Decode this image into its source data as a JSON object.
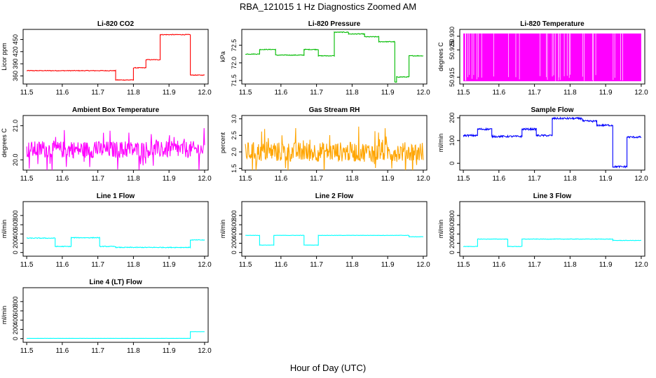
{
  "title": "RBA_121015  1 Hz Diagnostics Zoomed AM",
  "xlabel": "Hour of Day (UTC)",
  "chart_data": [
    {
      "type": "line",
      "title": "Li-820 CO2",
      "ylabel": "Licor ppm",
      "color": "#ff0000",
      "xlim": [
        11.49,
        12.01
      ],
      "ylim": [
        340,
        475
      ],
      "x_ticks": [
        "11.5",
        "11.6",
        "11.7",
        "11.8",
        "11.9",
        "12.0"
      ],
      "y_ticks": [
        {
          "v": 360,
          "label": "360"
        },
        {
          "v": 390,
          "label": "390"
        },
        {
          "v": 420,
          "label": "420"
        },
        {
          "v": 450,
          "label": "450"
        }
      ],
      "noise": 0.8,
      "steps": [
        [
          11.5,
          11.75,
          373
        ],
        [
          11.75,
          11.8,
          350
        ],
        [
          11.8,
          11.835,
          380
        ],
        [
          11.835,
          11.875,
          400
        ],
        [
          11.875,
          11.96,
          462
        ],
        [
          11.96,
          12.0,
          362
        ]
      ]
    },
    {
      "type": "line",
      "title": "Li-820 Pressure",
      "ylabel": "kPa",
      "color": "#00bb00",
      "xlim": [
        11.49,
        12.01
      ],
      "ylim": [
        71.4,
        72.95
      ],
      "x_ticks": [
        "11.5",
        "11.6",
        "11.7",
        "11.8",
        "11.9",
        "12.0"
      ],
      "y_ticks": [
        {
          "v": 71.5,
          "label": "71.5"
        },
        {
          "v": 72.0,
          "label": "72.0"
        },
        {
          "v": 72.5,
          "label": "72.5"
        }
      ],
      "noise": 0.01,
      "steps": [
        [
          11.5,
          11.54,
          72.25
        ],
        [
          11.54,
          11.585,
          72.38
        ],
        [
          11.585,
          11.665,
          72.22
        ],
        [
          11.665,
          11.705,
          72.38
        ],
        [
          11.705,
          11.75,
          72.2
        ],
        [
          11.75,
          11.79,
          72.87
        ],
        [
          11.79,
          11.835,
          72.82
        ],
        [
          11.835,
          11.875,
          72.74
        ],
        [
          11.875,
          11.92,
          72.6
        ],
        [
          11.92,
          11.925,
          71.45
        ],
        [
          11.925,
          11.96,
          71.6
        ],
        [
          11.96,
          12.0,
          72.2
        ]
      ]
    },
    {
      "type": "line",
      "title": "Li-820 Temperature",
      "ylabel": "degrees C",
      "color": "#ff00ff",
      "xlim": [
        11.49,
        12.01
      ],
      "ylim": [
        50.9125,
        50.9325
      ],
      "x_ticks": [
        "11.5",
        "11.6",
        "11.7",
        "11.8",
        "11.9",
        "12.0"
      ],
      "y_ticks": [
        {
          "v": 50.915,
          "label": "50.915"
        },
        {
          "v": 50.925,
          "label": "50.925"
        },
        {
          "v": 50.93,
          "label": "50.930"
        }
      ],
      "noise": 0,
      "steps": [
        [
          11.5,
          12.0,
          50.922
        ]
      ]
    },
    {
      "type": "line",
      "title": "Ambient Box Temperature",
      "ylabel": "degrees C",
      "color": "#ff00ff",
      "xlim": [
        11.49,
        12.01
      ],
      "ylim": [
        19.7,
        21.3
      ],
      "x_ticks": [
        "11.5",
        "11.6",
        "11.7",
        "11.8",
        "11.9",
        "12.0"
      ],
      "y_ticks": [
        {
          "v": 20.0,
          "label": "20.0"
        },
        {
          "v": 21.0,
          "label": "21.0"
        }
      ],
      "noise": 0.25,
      "steps": [
        [
          11.5,
          12.0,
          20.3
        ]
      ]
    },
    {
      "type": "line",
      "title": "Gas Stream RH",
      "ylabel": "percent",
      "color": "#ffa500",
      "xlim": [
        11.49,
        12.01
      ],
      "ylim": [
        1.45,
        3.1
      ],
      "x_ticks": [
        "11.5",
        "11.6",
        "11.7",
        "11.8",
        "11.9",
        "12.0"
      ],
      "y_ticks": [
        {
          "v": 1.5,
          "label": "1.5"
        },
        {
          "v": 2.0,
          "label": "2.0"
        },
        {
          "v": 2.5,
          "label": "2.5"
        },
        {
          "v": 3.0,
          "label": "3.0"
        }
      ],
      "noise": 0.3,
      "steps": [
        [
          11.5,
          12.0,
          2.0
        ]
      ]
    },
    {
      "type": "line",
      "title": "Sample Flow",
      "ylabel": "ml/min",
      "color": "#0000ff",
      "xlim": [
        11.49,
        12.01
      ],
      "ylim": [
        -30,
        210
      ],
      "x_ticks": [
        "11.5",
        "11.6",
        "11.7",
        "11.8",
        "11.9",
        "12.0"
      ],
      "y_ticks": [
        {
          "v": 0,
          "label": "0"
        },
        {
          "v": 100,
          "label": "100"
        },
        {
          "v": 200,
          "label": "200"
        }
      ],
      "noise": 4,
      "steps": [
        [
          11.5,
          11.54,
          122
        ],
        [
          11.54,
          11.58,
          150
        ],
        [
          11.58,
          11.665,
          118
        ],
        [
          11.665,
          11.705,
          150
        ],
        [
          11.705,
          11.75,
          122
        ],
        [
          11.75,
          11.835,
          197
        ],
        [
          11.835,
          11.875,
          185
        ],
        [
          11.875,
          11.92,
          167
        ],
        [
          11.92,
          11.96,
          -15
        ],
        [
          11.96,
          12.0,
          115
        ]
      ]
    },
    {
      "type": "line",
      "title": "Line 1 Flow",
      "ylabel": "ml/min",
      "color": "#00ffff",
      "xlim": [
        11.49,
        12.01
      ],
      "ylim": [
        -80,
        1100
      ],
      "x_ticks": [
        "11.5",
        "11.6",
        "11.7",
        "11.8",
        "11.9",
        "12.0"
      ],
      "y_ticks": [
        {
          "v": 0,
          "label": "0"
        },
        {
          "v": 200,
          "label": "200"
        },
        {
          "v": 400,
          "label": "400"
        },
        {
          "v": 600,
          "label": "600"
        },
        {
          "v": 800,
          "label": "800"
        }
      ],
      "noise": 8,
      "steps": [
        [
          11.5,
          11.58,
          310
        ],
        [
          11.58,
          11.625,
          130
        ],
        [
          11.625,
          11.705,
          320
        ],
        [
          11.705,
          11.75,
          130
        ],
        [
          11.75,
          11.96,
          110
        ],
        [
          11.96,
          12.0,
          270
        ]
      ]
    },
    {
      "type": "line",
      "title": "Line 2 Flow",
      "ylabel": "ml/min",
      "color": "#00ffff",
      "xlim": [
        11.49,
        12.01
      ],
      "ylim": [
        -80,
        1100
      ],
      "x_ticks": [
        "11.5",
        "11.6",
        "11.7",
        "11.8",
        "11.9",
        "12.0"
      ],
      "y_ticks": [
        {
          "v": 0,
          "label": "0"
        },
        {
          "v": 200,
          "label": "200"
        },
        {
          "v": 400,
          "label": "400"
        },
        {
          "v": 600,
          "label": "600"
        },
        {
          "v": 800,
          "label": "800"
        }
      ],
      "noise": 3,
      "steps": [
        [
          11.5,
          11.54,
          370
        ],
        [
          11.54,
          11.58,
          160
        ],
        [
          11.58,
          11.665,
          370
        ],
        [
          11.665,
          11.705,
          160
        ],
        [
          11.705,
          11.96,
          370
        ],
        [
          11.96,
          12.0,
          340
        ]
      ]
    },
    {
      "type": "line",
      "title": "Line 3 Flow",
      "ylabel": "ml/min",
      "color": "#00ffff",
      "xlim": [
        11.49,
        12.01
      ],
      "ylim": [
        -80,
        1100
      ],
      "x_ticks": [
        "11.5",
        "11.6",
        "11.7",
        "11.8",
        "11.9",
        "12.0"
      ],
      "y_ticks": [
        {
          "v": 0,
          "label": "0"
        },
        {
          "v": 200,
          "label": "200"
        },
        {
          "v": 400,
          "label": "400"
        },
        {
          "v": 600,
          "label": "600"
        },
        {
          "v": 800,
          "label": "800"
        }
      ],
      "noise": 5,
      "steps": [
        [
          11.5,
          11.54,
          130
        ],
        [
          11.54,
          11.625,
          290
        ],
        [
          11.625,
          11.665,
          130
        ],
        [
          11.665,
          11.92,
          290
        ],
        [
          11.92,
          12.0,
          260
        ]
      ]
    },
    {
      "type": "line",
      "title": "Line 4 (LT) Flow",
      "ylabel": "ml/min",
      "color": "#00ffff",
      "xlim": [
        11.49,
        12.01
      ],
      "ylim": [
        -80,
        1100
      ],
      "x_ticks": [
        "11.5",
        "11.6",
        "11.7",
        "11.8",
        "11.9",
        "12.0"
      ],
      "y_ticks": [
        {
          "v": 0,
          "label": "0"
        },
        {
          "v": 200,
          "label": "200"
        },
        {
          "v": 400,
          "label": "400"
        },
        {
          "v": 600,
          "label": "600"
        },
        {
          "v": 800,
          "label": "800"
        }
      ],
      "noise": 1,
      "steps": [
        [
          11.5,
          11.96,
          5
        ],
        [
          11.96,
          12.0,
          150
        ]
      ]
    }
  ]
}
